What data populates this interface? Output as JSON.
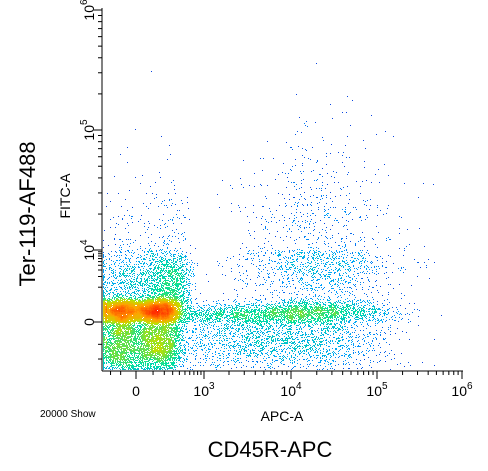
{
  "chart_data": {
    "type": "scatter",
    "title": "",
    "xlabel": "APC-A",
    "ylabel": "FITC-A",
    "outer_xlabel": "CD45R-APC",
    "outer_ylabel": "Ter-119-AF488",
    "event_count_label": "20000 Show",
    "x_scale": "biexponential",
    "y_scale": "biexponential",
    "xlim": [
      -300,
      1000000
    ],
    "ylim": [
      -300,
      1000000
    ],
    "x_tick_labels": [
      {
        "value": 0,
        "label": "0"
      },
      {
        "value": 1000,
        "label": "10",
        "sup": "3"
      },
      {
        "value": 10000,
        "label": "10",
        "sup": "4"
      },
      {
        "value": 100000,
        "label": "10",
        "sup": "5"
      },
      {
        "value": 1000000,
        "label": "10",
        "sup": "6"
      }
    ],
    "y_tick_labels": [
      {
        "value": 0,
        "label": "0"
      },
      {
        "value": 10000,
        "label": "10",
        "sup": "4"
      },
      {
        "value": 100000,
        "label": "10",
        "sup": "5"
      },
      {
        "value": 1000000,
        "label": "10",
        "sup": "6"
      }
    ],
    "colormap": [
      "#1010d0",
      "#00a0ff",
      "#00e0a0",
      "#c0e000",
      "#ffa000",
      "#ff2000"
    ],
    "total_events": 20000,
    "populations": [
      {
        "name": "",
        "x_center": 30,
        "y_center": 40,
        "x_spread": 180,
        "y_spread": 180,
        "weight": 0.55
      },
      {
        "name": "",
        "x_center": 150,
        "y_center": 3000,
        "x_spread": 220,
        "y_spread": 5000,
        "weight": 0.12
      },
      {
        "name": "",
        "x_center": 2500,
        "y_center": 0,
        "x_spread": 2200,
        "y_spread": 120,
        "weight": 0.1
      },
      {
        "name": "",
        "x_center": 18000,
        "y_center": 50,
        "x_spread": 12000,
        "y_spread": 160,
        "weight": 0.15
      },
      {
        "name": "",
        "x_center": 20000,
        "y_center": 10000,
        "x_spread": 40000,
        "y_spread": 15000,
        "weight": 0.08
      }
    ],
    "grid": false,
    "legend": "none"
  }
}
